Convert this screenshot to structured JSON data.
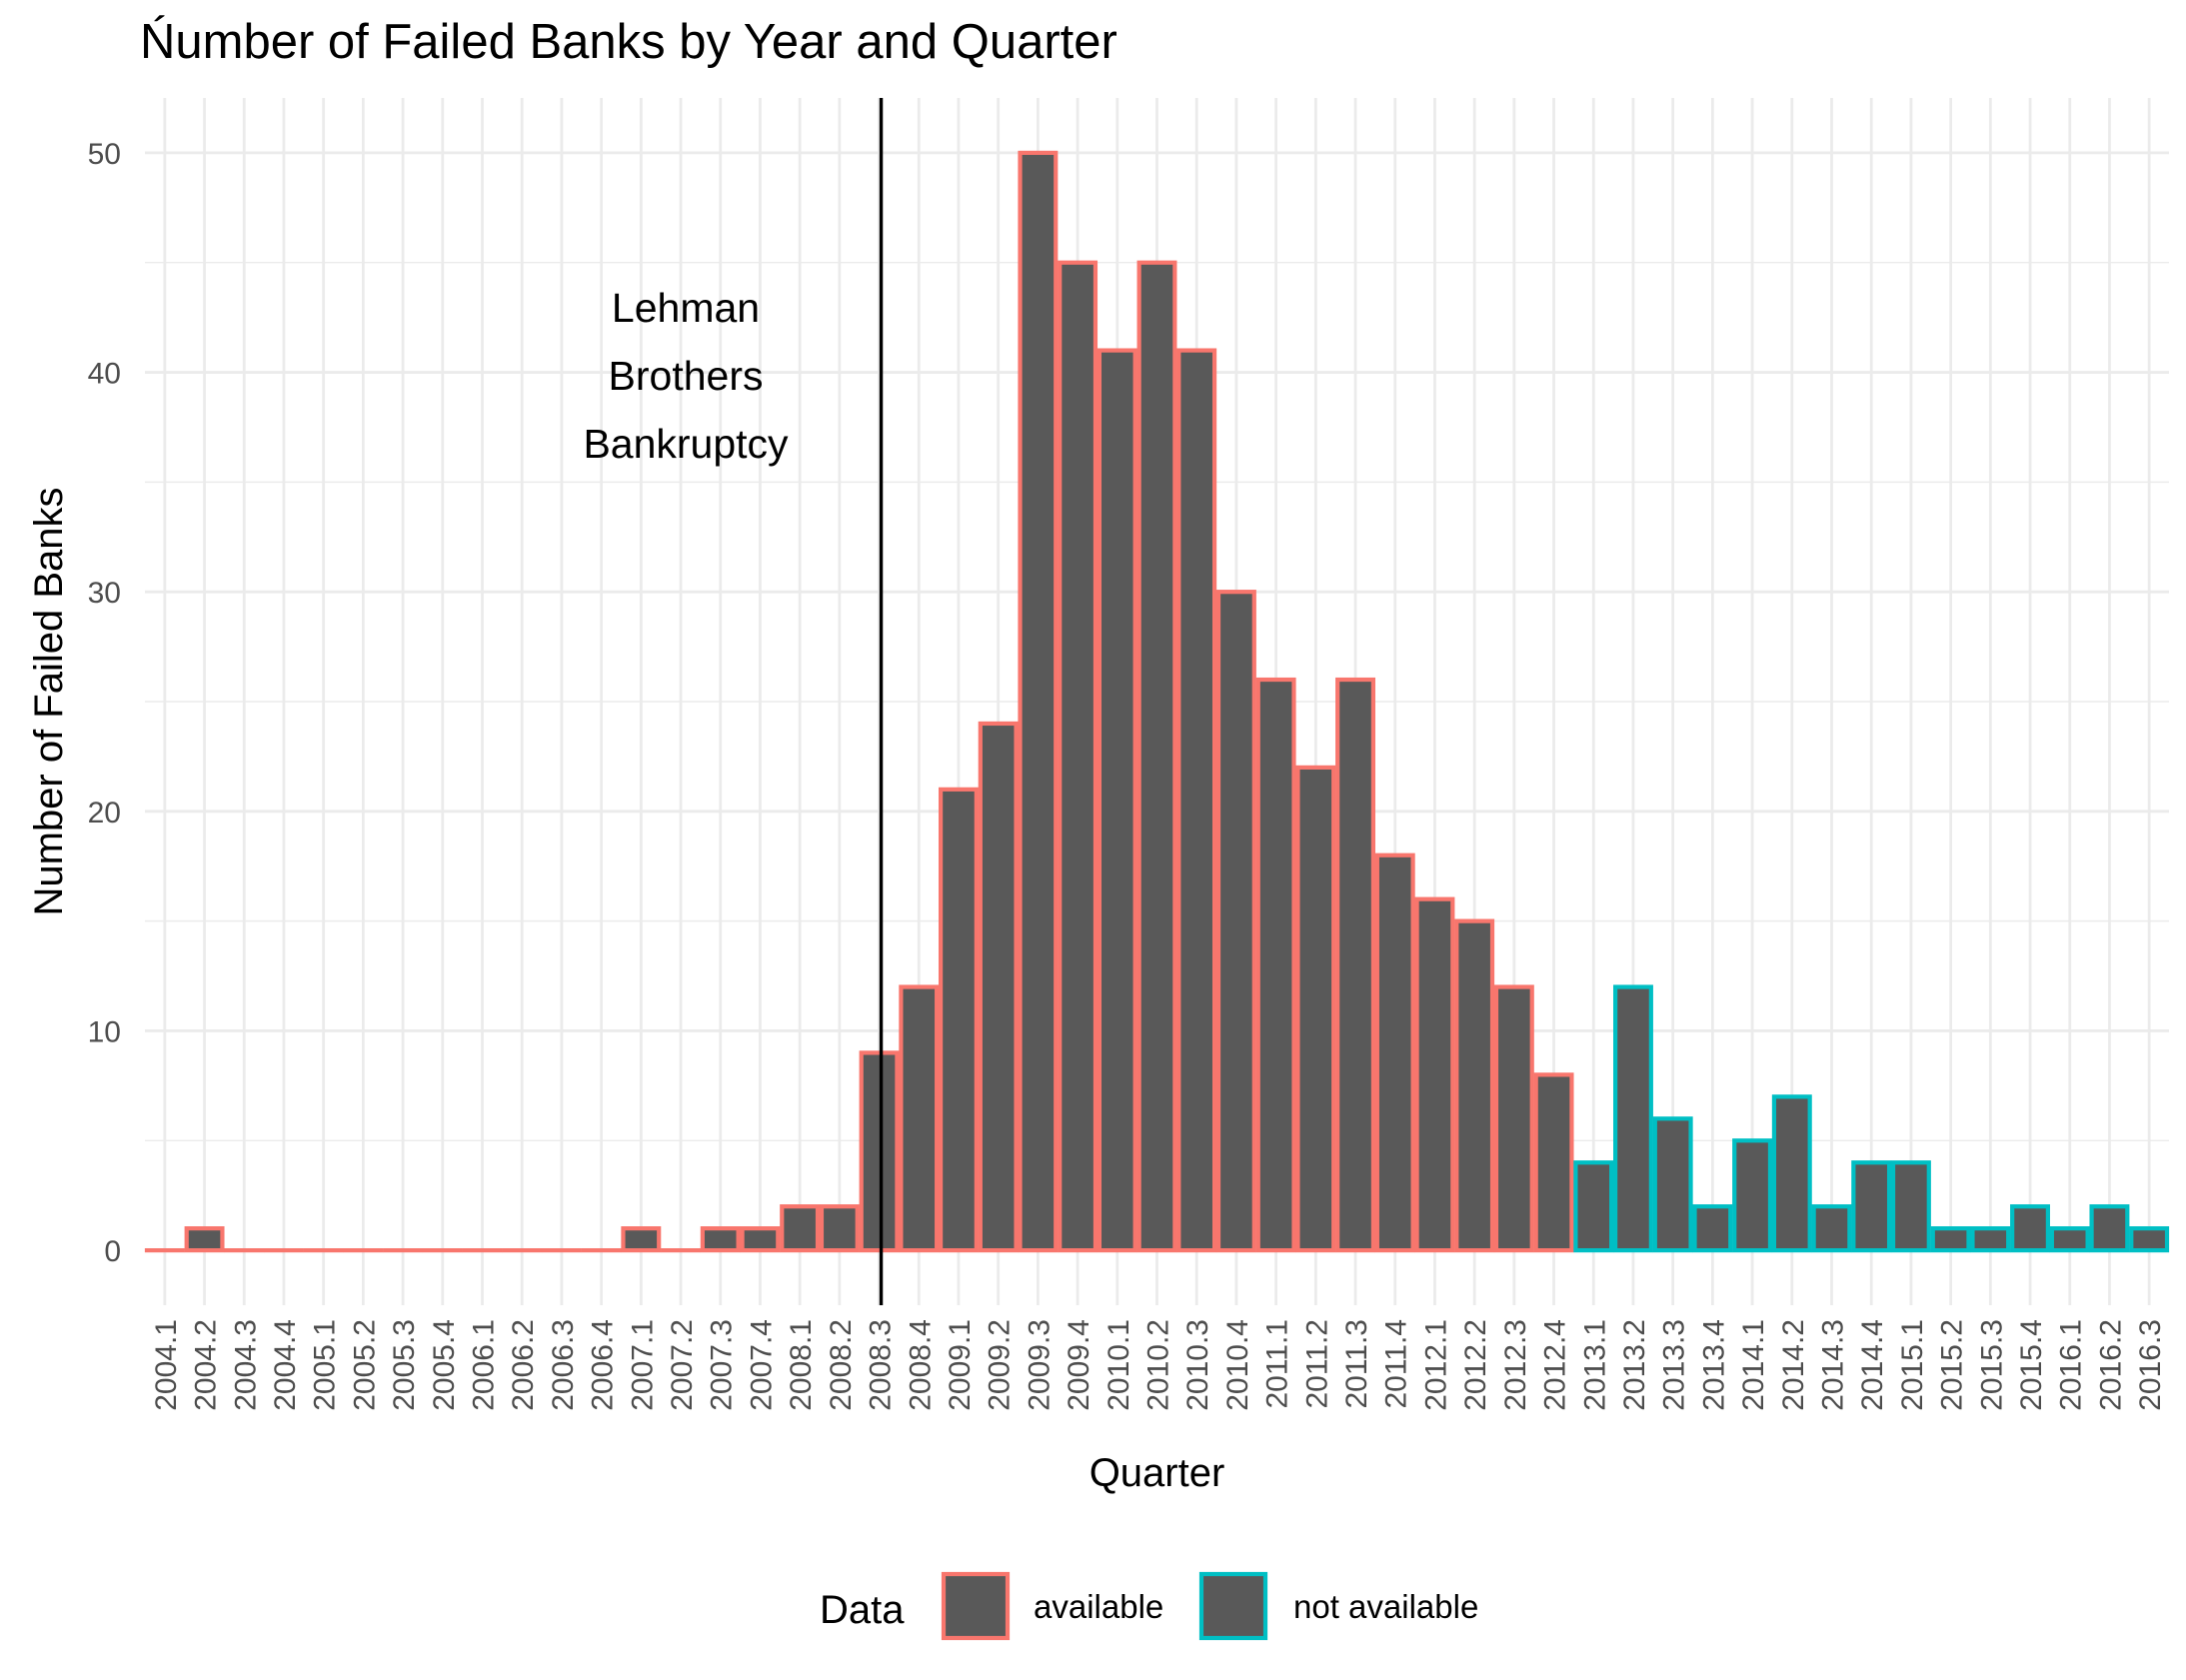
{
  "chart_data": {
    "type": "bar",
    "title": "Ńumber of Failed Banks by Year and Quarter",
    "xlabel": "Quarter",
    "ylabel": "Number of Failed Banks",
    "ylim": [
      -2.5,
      52.5
    ],
    "yticks": [
      0,
      10,
      20,
      30,
      40,
      50
    ],
    "grid": true,
    "legend_position": "bottom",
    "legend_title": "Data",
    "colors": {
      "bar_fill": "#595959",
      "available": "#F8766D",
      "not_available": "#00BFC4",
      "grid": "#EBEBEB",
      "vline": "#000000"
    },
    "categories": [
      "2004.1",
      "2004.2",
      "2004.3",
      "2004.4",
      "2005.1",
      "2005.2",
      "2005.3",
      "2005.4",
      "2006.1",
      "2006.2",
      "2006.3",
      "2006.4",
      "2007.1",
      "2007.2",
      "2007.3",
      "2007.4",
      "2008.1",
      "2008.2",
      "2008.3",
      "2008.4",
      "2009.1",
      "2009.2",
      "2009.3",
      "2009.4",
      "2010.1",
      "2010.2",
      "2010.3",
      "2010.4",
      "2011.1",
      "2011.2",
      "2011.3",
      "2011.4",
      "2012.1",
      "2012.2",
      "2012.3",
      "2012.4",
      "2013.1",
      "2013.2",
      "2013.3",
      "2013.4",
      "2014.1",
      "2014.2",
      "2014.3",
      "2014.4",
      "2015.1",
      "2015.2",
      "2015.3",
      "2015.4",
      "2016.1",
      "2016.2",
      "2016.3"
    ],
    "values": [
      0,
      1,
      0,
      0,
      0,
      0,
      0,
      0,
      0,
      0,
      0,
      0,
      1,
      0,
      1,
      1,
      2,
      2,
      9,
      12,
      21,
      24,
      50,
      45,
      41,
      45,
      41,
      30,
      26,
      22,
      26,
      18,
      16,
      15,
      12,
      8,
      4,
      12,
      6,
      2,
      5,
      7,
      2,
      4,
      4,
      1,
      1,
      2,
      1,
      2,
      1
    ],
    "series": [
      {
        "name": "available",
        "from": "2004.1",
        "to": "2012.4"
      },
      {
        "name": "not available",
        "from": "2013.1",
        "to": "2016.3"
      }
    ],
    "vline": {
      "x": "2008.3"
    },
    "annotation": {
      "lines": [
        "Lehman",
        "Brothers",
        "Bankruptcy"
      ]
    }
  }
}
